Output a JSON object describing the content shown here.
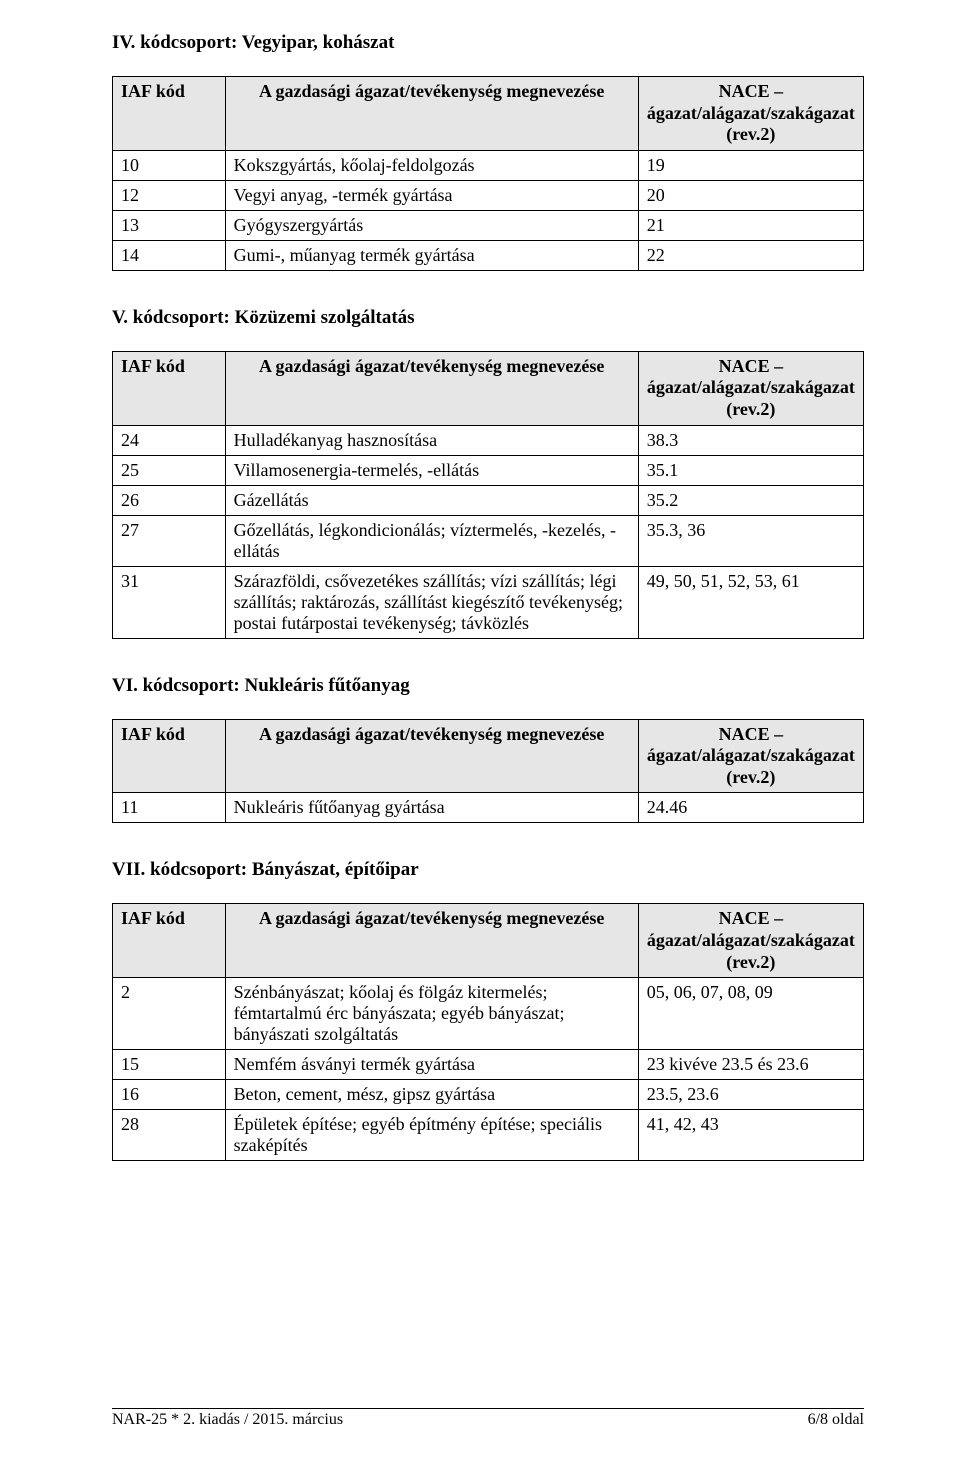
{
  "colors": {
    "page_bg": "#ffffff",
    "text": "#000000",
    "table_border": "#000000",
    "header_bg": "#e6e6e6"
  },
  "typography": {
    "body_font": "Times New Roman",
    "body_size_pt": 13,
    "title_size_pt": 14,
    "title_weight": "bold"
  },
  "columns": {
    "iaf": "IAF kód",
    "desc": "A gazdasági ágazat/tevékenység megnevezése",
    "nace_line1": "NACE –",
    "nace_line2": "ágazat/alágazat/szakágazat",
    "nace_line3": "(rev.2)"
  },
  "sections": [
    {
      "title": "IV. kódcsoport: Vegyipar, kohászat",
      "rows": [
        {
          "iaf": "10",
          "desc": "Kokszgyártás, kőolaj-feldolgozás",
          "nace": "19"
        },
        {
          "iaf": "12",
          "desc": "Vegyi anyag, -termék gyártása",
          "nace": "20"
        },
        {
          "iaf": "13",
          "desc": "Gyógyszergyártás",
          "nace": "21"
        },
        {
          "iaf": "14",
          "desc": "Gumi-, műanyag termék gyártása",
          "nace": "22"
        }
      ]
    },
    {
      "title": "V. kódcsoport: Közüzemi szolgáltatás",
      "rows": [
        {
          "iaf": "24",
          "desc": "Hulladékanyag hasznosítása",
          "nace": "38.3"
        },
        {
          "iaf": "25",
          "desc": "Villamosenergia-termelés, -ellátás",
          "nace": "35.1"
        },
        {
          "iaf": "26",
          "desc": "Gázellátás",
          "nace": "35.2"
        },
        {
          "iaf": "27",
          "desc": "Gőzellátás, légkondicionálás; víztermelés, -kezelés, -ellátás",
          "nace": "35.3, 36"
        },
        {
          "iaf": "31",
          "desc": "Szárazföldi, csővezetékes szállítás; vízi szállítás; légi szállítás; raktározás, szállítást kiegészítő tevékenység; postai futárpostai tevékenység; távközlés",
          "nace": "49, 50, 51, 52, 53, 61"
        }
      ]
    },
    {
      "title": "VI. kódcsoport: Nukleáris fűtőanyag",
      "rows": [
        {
          "iaf": "11",
          "desc": "Nukleáris fűtőanyag gyártása",
          "nace": "24.46"
        }
      ]
    },
    {
      "title": "VII. kódcsoport: Bányászat, építőipar",
      "rows": [
        {
          "iaf": "2",
          "desc": "Szénbányászat; kőolaj és fölgáz kitermelés; fémtartalmú érc bányászata; egyéb bányászat; bányászati szolgáltatás",
          "nace": "05, 06, 07, 08, 09"
        },
        {
          "iaf": "15",
          "desc": "Nemfém ásványi termék gyártása",
          "nace": "23 kivéve 23.5 és 23.6"
        },
        {
          "iaf": "16",
          "desc": "Beton, cement, mész, gipsz gyártása",
          "nace": "23.5, 23.6"
        },
        {
          "iaf": "28",
          "desc": "Épületek építése; egyéb építmény építése; speciális szaképítés",
          "nace": "41, 42, 43"
        }
      ]
    }
  ],
  "footer": {
    "left": "NAR-25 * 2. kiadás / 2015. március",
    "right": "6/8 oldal"
  }
}
